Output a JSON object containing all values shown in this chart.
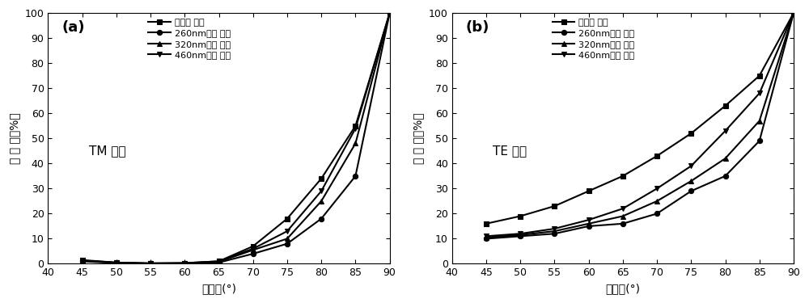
{
  "x": [
    45,
    50,
    55,
    60,
    65,
    70,
    75,
    80,
    85,
    90
  ],
  "tm_uncoated": [
    1.5,
    0.5,
    0.2,
    0.3,
    1.0,
    7.0,
    18.0,
    34.0,
    55.0,
    100.0
  ],
  "tm_260nm": [
    1.0,
    0.3,
    0.1,
    0.1,
    0.5,
    4.0,
    8.0,
    18.0,
    35.0,
    100.0
  ],
  "tm_320nm": [
    1.2,
    0.4,
    0.1,
    0.2,
    0.8,
    5.5,
    10.0,
    25.0,
    48.0,
    100.0
  ],
  "tm_460nm": [
    1.3,
    0.5,
    0.2,
    0.3,
    1.0,
    6.0,
    13.0,
    29.0,
    54.0,
    100.0
  ],
  "te_uncoated": [
    16.0,
    19.0,
    23.0,
    29.0,
    35.0,
    43.0,
    52.0,
    63.0,
    75.0,
    100.0
  ],
  "te_260nm": [
    10.0,
    11.0,
    12.0,
    15.0,
    16.0,
    20.0,
    29.0,
    35.0,
    49.0,
    100.0
  ],
  "te_320nm": [
    10.5,
    11.5,
    13.0,
    16.0,
    19.0,
    25.0,
    33.0,
    42.0,
    57.0,
    100.0
  ],
  "te_460nm": [
    11.0,
    12.0,
    14.0,
    17.5,
    22.0,
    30.0,
    39.0,
    53.0,
    68.0,
    100.0
  ],
  "xlabel": "入射角(°)",
  "ylabel": "反 射 率（%）",
  "label_uncoated": "未镀膜 玻璃",
  "label_260nm": "260nm镀膜 玻璃",
  "label_320nm": "320nm镀膜 玻璃",
  "label_460nm": "460nm镀膜 玻璃",
  "tm_label": "TM 极化",
  "te_label": "TE 极化",
  "panel_a": "(a)",
  "panel_b": "(b)",
  "xlim": [
    40,
    90
  ],
  "ylim": [
    0,
    100
  ],
  "xticks": [
    40,
    45,
    50,
    55,
    60,
    65,
    70,
    75,
    80,
    85,
    90
  ],
  "yticks": [
    0,
    10,
    20,
    30,
    40,
    50,
    60,
    70,
    80,
    90,
    100
  ]
}
